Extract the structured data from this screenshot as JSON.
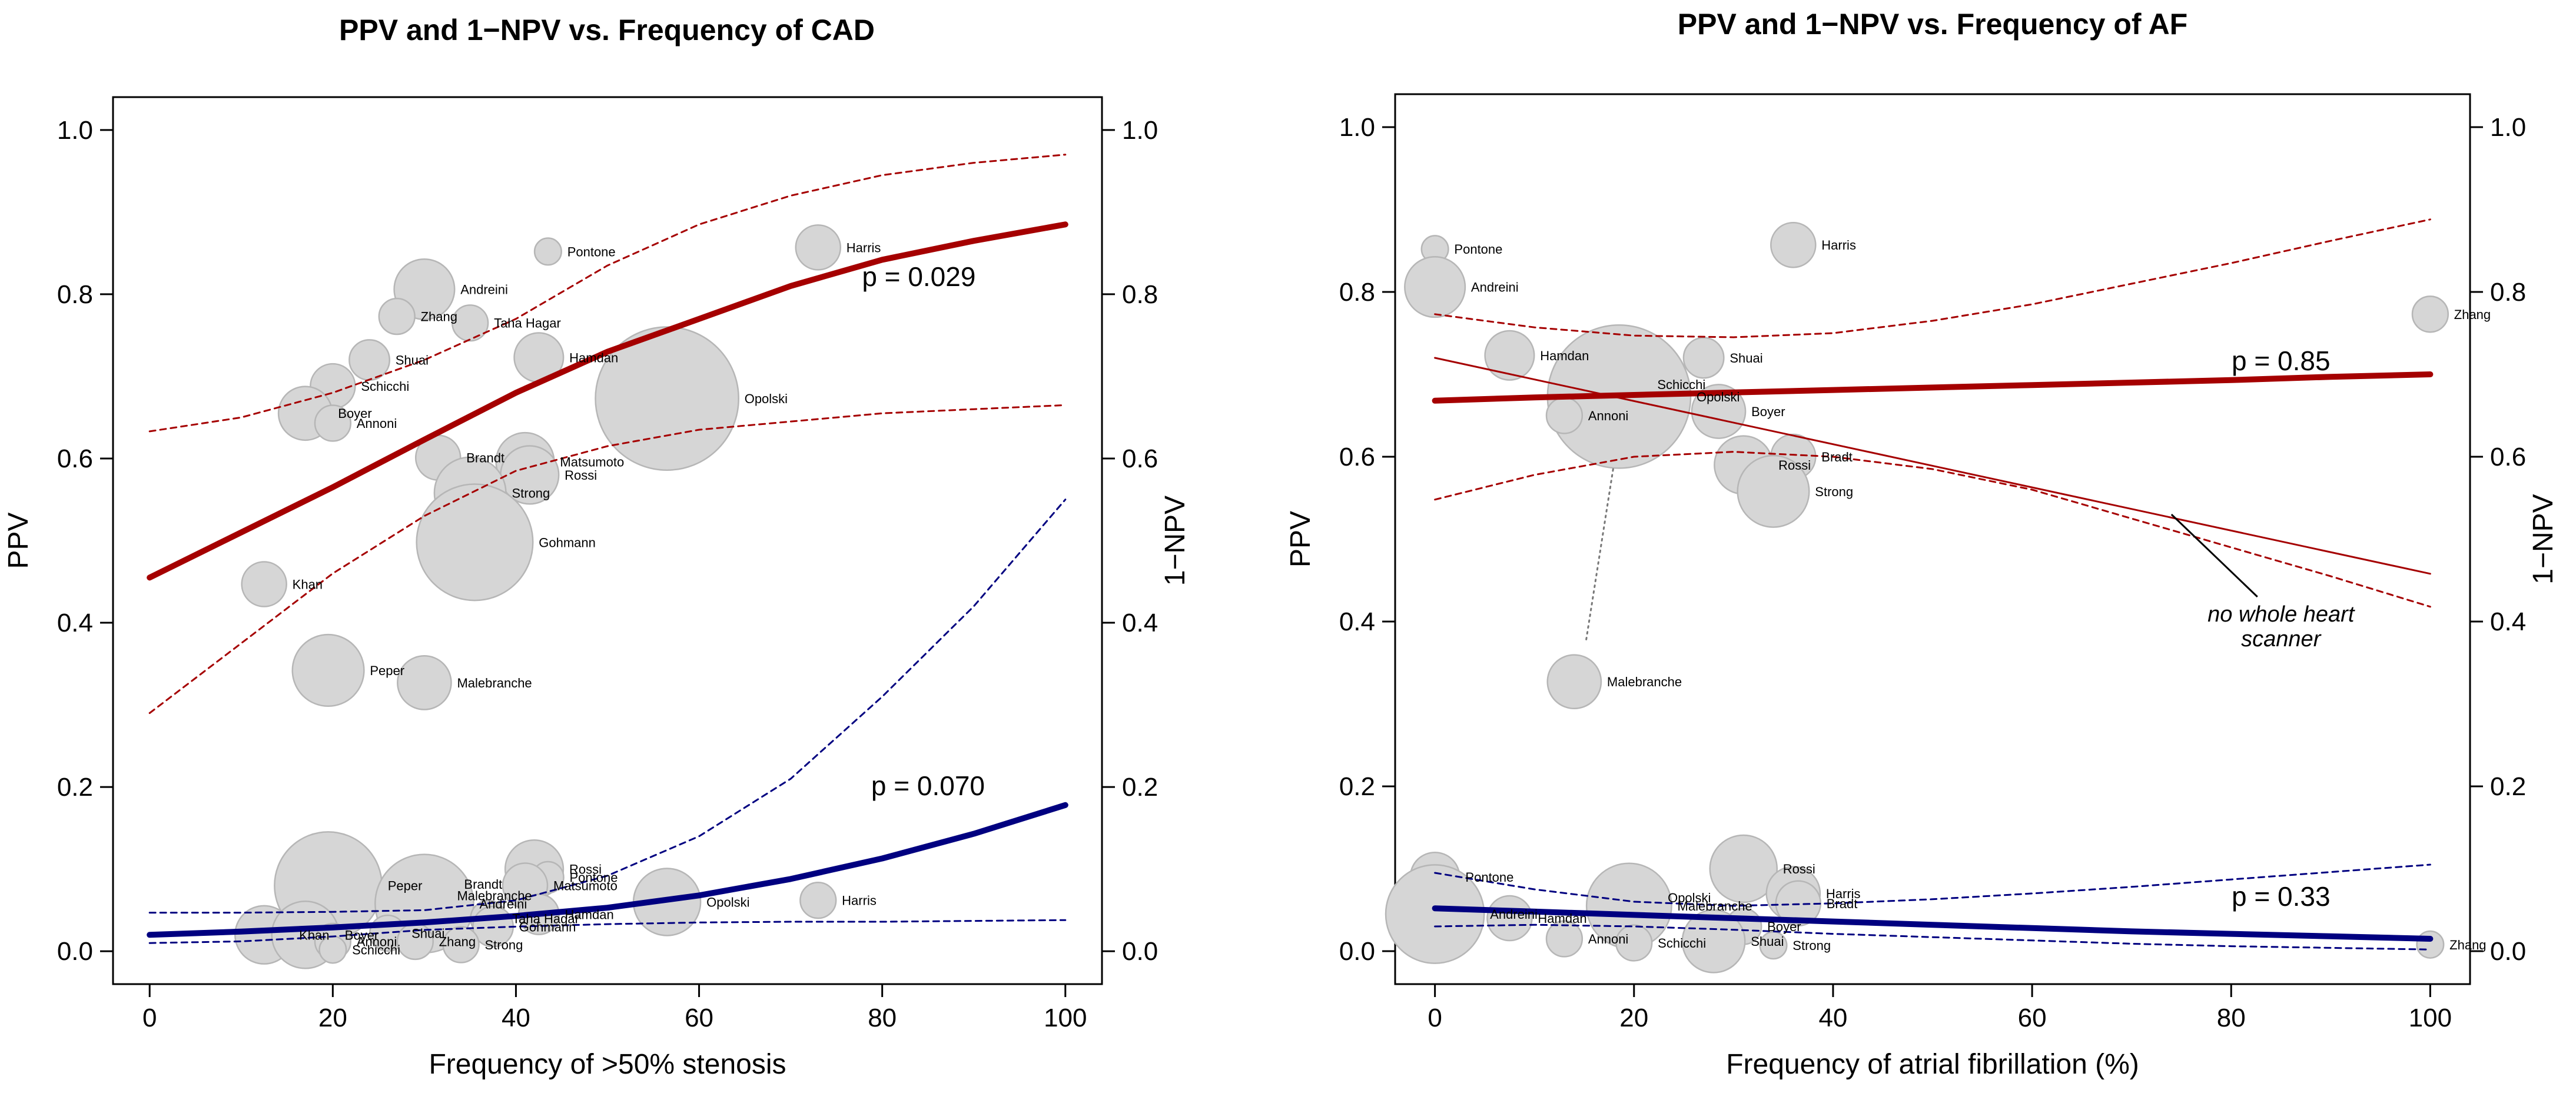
{
  "colors": {
    "ppv": "#a50000",
    "npv": "#000080",
    "bubble_fill": "#d6d6d6",
    "bubble_stroke": "#b6b6b6",
    "text": "#000000"
  },
  "chart_data": [
    {
      "type": "scatter",
      "title": "PPV and 1−NPV vs. Frequency of CAD",
      "xlabel": "Frequency of >50% stenosis",
      "ylabel": "PPV",
      "y2label": "1−NPV",
      "xlim": [
        -4,
        104
      ],
      "ylim": [
        -0.04,
        1.04
      ],
      "xticks": [
        0,
        20,
        40,
        60,
        80,
        100
      ],
      "xtick_labels": [
        "0",
        "20",
        "40",
        "60",
        "80",
        "100"
      ],
      "yticks": [
        0,
        0.2,
        0.4,
        0.6,
        0.8,
        1.0
      ],
      "ytick_labels": [
        "0.0",
        "0.2",
        "0.4",
        "0.6",
        "0.8",
        "1.0"
      ],
      "p_values": [
        {
          "text": "p = 0.029",
          "x": 84,
          "y": 0.81,
          "series": "ppv"
        },
        {
          "text": "p = 0.070",
          "x": 85,
          "y": 0.19,
          "series": "npv"
        }
      ],
      "ppv_fit": {
        "x": [
          0,
          10,
          20,
          30,
          40,
          50,
          60,
          70,
          80,
          90,
          100
        ],
        "y": [
          0.455,
          0.51,
          0.565,
          0.623,
          0.68,
          0.73,
          0.77,
          0.81,
          0.842,
          0.865,
          0.885
        ],
        "ci_upper": [
          0.633,
          0.65,
          0.68,
          0.72,
          0.77,
          0.835,
          0.885,
          0.92,
          0.945,
          0.96,
          0.97
        ],
        "ci_lower": [
          0.29,
          0.375,
          0.46,
          0.53,
          0.585,
          0.615,
          0.635,
          0.645,
          0.655,
          0.66,
          0.665
        ]
      },
      "npv_fit": {
        "x": [
          0,
          10,
          20,
          30,
          40,
          50,
          60,
          70,
          80,
          90,
          100
        ],
        "y": [
          0.02,
          0.024,
          0.029,
          0.035,
          0.043,
          0.053,
          0.068,
          0.088,
          0.113,
          0.143,
          0.178
        ],
        "ci_upper": [
          0.047,
          0.047,
          0.048,
          0.05,
          0.062,
          0.092,
          0.14,
          0.21,
          0.31,
          0.42,
          0.55
        ],
        "ci_lower": [
          0.01,
          0.012,
          0.018,
          0.026,
          0.03,
          0.033,
          0.035,
          0.036,
          0.036,
          0.037,
          0.038
        ]
      },
      "ppv_points": [
        {
          "name": "Pontone",
          "x": 43.5,
          "y": 0.852,
          "size": 0.6
        },
        {
          "name": "Harris",
          "x": 73,
          "y": 0.857,
          "size": 1.0
        },
        {
          "name": "Andreini",
          "x": 30,
          "y": 0.806,
          "size": 1.35
        },
        {
          "name": "Zhang",
          "x": 27,
          "y": 0.773,
          "size": 0.8
        },
        {
          "name": "Taha Hagar",
          "x": 35,
          "y": 0.765,
          "size": 0.8
        },
        {
          "name": "Shuai",
          "x": 24,
          "y": 0.72,
          "size": 0.9
        },
        {
          "name": "Hamdan",
          "x": 42.5,
          "y": 0.723,
          "size": 1.1
        },
        {
          "name": "Schicchi",
          "x": 20,
          "y": 0.688,
          "size": 1.0
        },
        {
          "name": "Opolski",
          "x": 56.5,
          "y": 0.673,
          "size": 3.2
        },
        {
          "name": "Boyer",
          "x": 17,
          "y": 0.655,
          "size": 1.2
        },
        {
          "name": "Annoni",
          "x": 20,
          "y": 0.643,
          "size": 0.8
        },
        {
          "name": "Brandt",
          "x": 31.5,
          "y": 0.601,
          "size": 1.0
        },
        {
          "name": "Matsumoto",
          "x": 41,
          "y": 0.596,
          "size": 1.3
        },
        {
          "name": "Rossi",
          "x": 41.5,
          "y": 0.58,
          "size": 1.3
        },
        {
          "name": "Strong",
          "x": 35,
          "y": 0.558,
          "size": 1.6
        },
        {
          "name": "Gohmann",
          "x": 35.5,
          "y": 0.498,
          "size": 2.6
        },
        {
          "name": "Khan",
          "x": 12.5,
          "y": 0.447,
          "size": 1.0
        },
        {
          "name": "Peper",
          "x": 19.5,
          "y": 0.342,
          "size": 1.6
        },
        {
          "name": "Malebranche",
          "x": 30,
          "y": 0.327,
          "size": 1.2
        }
      ],
      "npv_points": [
        {
          "name": "Peper",
          "x": 19.5,
          "y": 0.08,
          "size": 2.4
        },
        {
          "name": "Rossi",
          "x": 42,
          "y": 0.1,
          "size": 1.3
        },
        {
          "name": "Brandt",
          "x": 31.5,
          "y": 0.082,
          "size": 0.9
        },
        {
          "name": "Pontone",
          "x": 43.5,
          "y": 0.09,
          "size": 0.7
        },
        {
          "name": "Matsumoto",
          "x": 41,
          "y": 0.08,
          "size": 1.0
        },
        {
          "name": "Malebranche",
          "x": 30,
          "y": 0.068,
          "size": 1.2
        },
        {
          "name": "Andreini",
          "x": 30,
          "y": 0.058,
          "size": 2.2
        },
        {
          "name": "Opolski",
          "x": 56.5,
          "y": 0.06,
          "size": 1.5
        },
        {
          "name": "Harris",
          "x": 73,
          "y": 0.062,
          "size": 0.8
        },
        {
          "name": "Hamdan",
          "x": 42.5,
          "y": 0.045,
          "size": 0.9
        },
        {
          "name": "Taha Hagar",
          "x": 37,
          "y": 0.04,
          "size": 0.8
        },
        {
          "name": "Gohmann",
          "x": 37.5,
          "y": 0.03,
          "size": 0.9
        },
        {
          "name": "Khan",
          "x": 12.5,
          "y": 0.02,
          "size": 1.3
        },
        {
          "name": "Boyer",
          "x": 17,
          "y": 0.02,
          "size": 1.5
        },
        {
          "name": "Shuai",
          "x": 26,
          "y": 0.022,
          "size": 0.8
        },
        {
          "name": "Annoni",
          "x": 20,
          "y": 0.012,
          "size": 0.8
        },
        {
          "name": "Zhang",
          "x": 29,
          "y": 0.012,
          "size": 0.8
        },
        {
          "name": "Strong",
          "x": 34,
          "y": 0.008,
          "size": 0.8
        },
        {
          "name": "Schicchi",
          "x": 20,
          "y": 0.002,
          "size": 0.6
        }
      ]
    },
    {
      "type": "scatter",
      "title": "PPV and 1−NPV vs. Frequency of AF",
      "xlabel": "Frequency of atrial fibrillation (%)",
      "ylabel": "PPV",
      "y2label": "1−NPV",
      "xlim": [
        -4,
        104
      ],
      "ylim": [
        -0.04,
        1.04
      ],
      "xticks": [
        0,
        20,
        40,
        60,
        80,
        100
      ],
      "xtick_labels": [
        "0",
        "20",
        "40",
        "60",
        "80",
        "100"
      ],
      "yticks": [
        0,
        0.2,
        0.4,
        0.6,
        0.8,
        1.0
      ],
      "ytick_labels": [
        "0.0",
        "0.2",
        "0.4",
        "0.6",
        "0.8",
        "1.0"
      ],
      "p_values": [
        {
          "text": "p = 0.85",
          "x": 85,
          "y": 0.705,
          "series": "ppv"
        },
        {
          "text": "p = 0.33",
          "x": 85,
          "y": 0.055,
          "series": "npv"
        }
      ],
      "annotation": {
        "lines": [
          "no whole heart",
          "scanner"
        ],
        "x": 85,
        "y": 0.4,
        "pointer_to": {
          "x": 74,
          "y": 0.53
        }
      },
      "ppv_fit": {
        "x": [
          0,
          10,
          20,
          30,
          40,
          50,
          60,
          70,
          80,
          90,
          100
        ],
        "y": [
          0.668,
          0.672,
          0.675,
          0.678,
          0.681,
          0.684,
          0.687,
          0.69,
          0.693,
          0.697,
          0.7
        ],
        "ci_upper": [
          0.773,
          0.757,
          0.747,
          0.745,
          0.75,
          0.765,
          0.785,
          0.81,
          0.835,
          0.862,
          0.888
        ],
        "ci_lower": [
          0.548,
          0.578,
          0.6,
          0.606,
          0.6,
          0.585,
          0.56,
          0.525,
          0.49,
          0.455,
          0.418
        ]
      },
      "npv_fit": {
        "x": [
          0,
          10,
          20,
          30,
          40,
          50,
          60,
          70,
          80,
          90,
          100
        ],
        "y": [
          0.052,
          0.048,
          0.044,
          0.04,
          0.036,
          0.032,
          0.028,
          0.024,
          0.021,
          0.018,
          0.015
        ],
        "ci_upper": [
          0.095,
          0.075,
          0.06,
          0.055,
          0.058,
          0.063,
          0.07,
          0.078,
          0.087,
          0.096,
          0.105
        ],
        "ci_lower": [
          0.03,
          0.032,
          0.03,
          0.026,
          0.021,
          0.017,
          0.013,
          0.009,
          0.006,
          0.004,
          0.002
        ]
      },
      "no_whole_heart_fit": {
        "x": [
          0,
          100
        ],
        "y": [
          0.72,
          0.458
        ]
      },
      "dotted_connector": {
        "x": [
          17.9,
          15.2
        ],
        "y": [
          0.585,
          0.378
        ]
      },
      "ppv_points": [
        {
          "name": "Pontone",
          "x": 0,
          "y": 0.852,
          "size": 0.6
        },
        {
          "name": "Harris",
          "x": 36,
          "y": 0.857,
          "size": 1.0
        },
        {
          "name": "Andreini",
          "x": 0,
          "y": 0.806,
          "size": 1.35
        },
        {
          "name": "Zhang",
          "x": 100,
          "y": 0.773,
          "size": 0.8
        },
        {
          "name": "Hamdan",
          "x": 7.5,
          "y": 0.723,
          "size": 1.1
        },
        {
          "name": "Shuai",
          "x": 27,
          "y": 0.72,
          "size": 0.9
        },
        {
          "name": "Schicchi",
          "x": 19.5,
          "y": 0.688,
          "size": 1.0
        },
        {
          "name": "Opolski",
          "x": 18.5,
          "y": 0.673,
          "size": 3.2
        },
        {
          "name": "Boyer",
          "x": 28.5,
          "y": 0.655,
          "size": 1.2
        },
        {
          "name": "Annoni",
          "x": 13,
          "y": 0.65,
          "size": 0.8
        },
        {
          "name": "Bradt",
          "x": 36,
          "y": 0.6,
          "size": 1.0
        },
        {
          "name": "Rossi",
          "x": 31,
          "y": 0.59,
          "size": 1.3
        },
        {
          "name": "Strong",
          "x": 34,
          "y": 0.558,
          "size": 1.6
        },
        {
          "name": "Malebranche",
          "x": 14,
          "y": 0.327,
          "size": 1.2
        }
      ],
      "npv_points": [
        {
          "name": "Rossi",
          "x": 31,
          "y": 0.1,
          "size": 1.5
        },
        {
          "name": "Pontone",
          "x": 0,
          "y": 0.09,
          "size": 1.1
        },
        {
          "name": "Harris",
          "x": 36,
          "y": 0.07,
          "size": 1.2
        },
        {
          "name": "Bradt",
          "x": 36.5,
          "y": 0.058,
          "size": 1.0
        },
        {
          "name": "Opolski",
          "x": 21,
          "y": 0.065,
          "size": 0.8
        },
        {
          "name": "Malebranche",
          "x": 19.5,
          "y": 0.055,
          "size": 1.9
        },
        {
          "name": "Andreini",
          "x": 0,
          "y": 0.045,
          "size": 2.2
        },
        {
          "name": "Hamdan",
          "x": 7.5,
          "y": 0.04,
          "size": 1.0
        },
        {
          "name": "Boyer",
          "x": 31,
          "y": 0.03,
          "size": 0.8
        },
        {
          "name": "Annoni",
          "x": 13,
          "y": 0.015,
          "size": 0.8
        },
        {
          "name": "Schicchi",
          "x": 20,
          "y": 0.01,
          "size": 0.8
        },
        {
          "name": "Shuai",
          "x": 28,
          "y": 0.012,
          "size": 1.4
        },
        {
          "name": "Strong",
          "x": 34,
          "y": 0.007,
          "size": 0.6
        },
        {
          "name": "Zhang",
          "x": 100,
          "y": 0.008,
          "size": 0.6
        }
      ]
    }
  ]
}
